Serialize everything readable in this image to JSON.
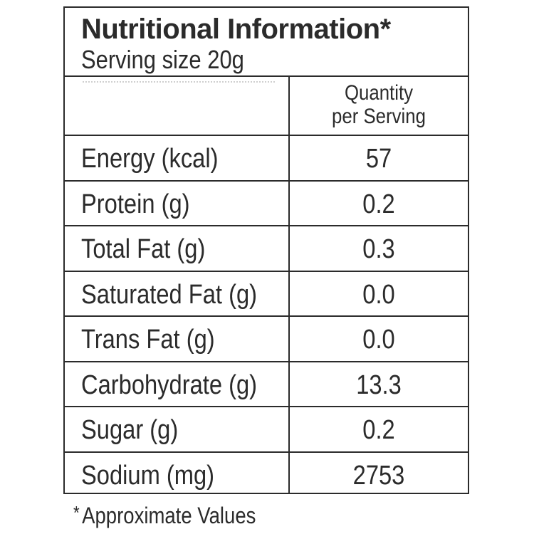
{
  "label": {
    "title": "Nutritional Information*",
    "serving_size": "Serving size 20g",
    "column_header": [
      "Quantity",
      "per Serving"
    ],
    "rows": [
      {
        "nutrient": "Energy (kcal)",
        "value": "57"
      },
      {
        "nutrient": "Protein (g)",
        "value": "0.2"
      },
      {
        "nutrient": "Total Fat (g)",
        "value": "0.3"
      },
      {
        "nutrient": "Saturated Fat (g)",
        "value": "0.0"
      },
      {
        "nutrient": "Trans Fat (g)",
        "value": "0.0"
      },
      {
        "nutrient": "Carbohydrate (g)",
        "value": "13.3"
      },
      {
        "nutrient": "Sugar (g)",
        "value": "0.2"
      },
      {
        "nutrient": "Sodium (mg)",
        "value": "2753"
      }
    ],
    "footnote_mark": "*",
    "footnote": "Approximate Values"
  },
  "colors": {
    "text": "#2b2b2b",
    "border": "#2b2b2b",
    "background": "#ffffff"
  }
}
